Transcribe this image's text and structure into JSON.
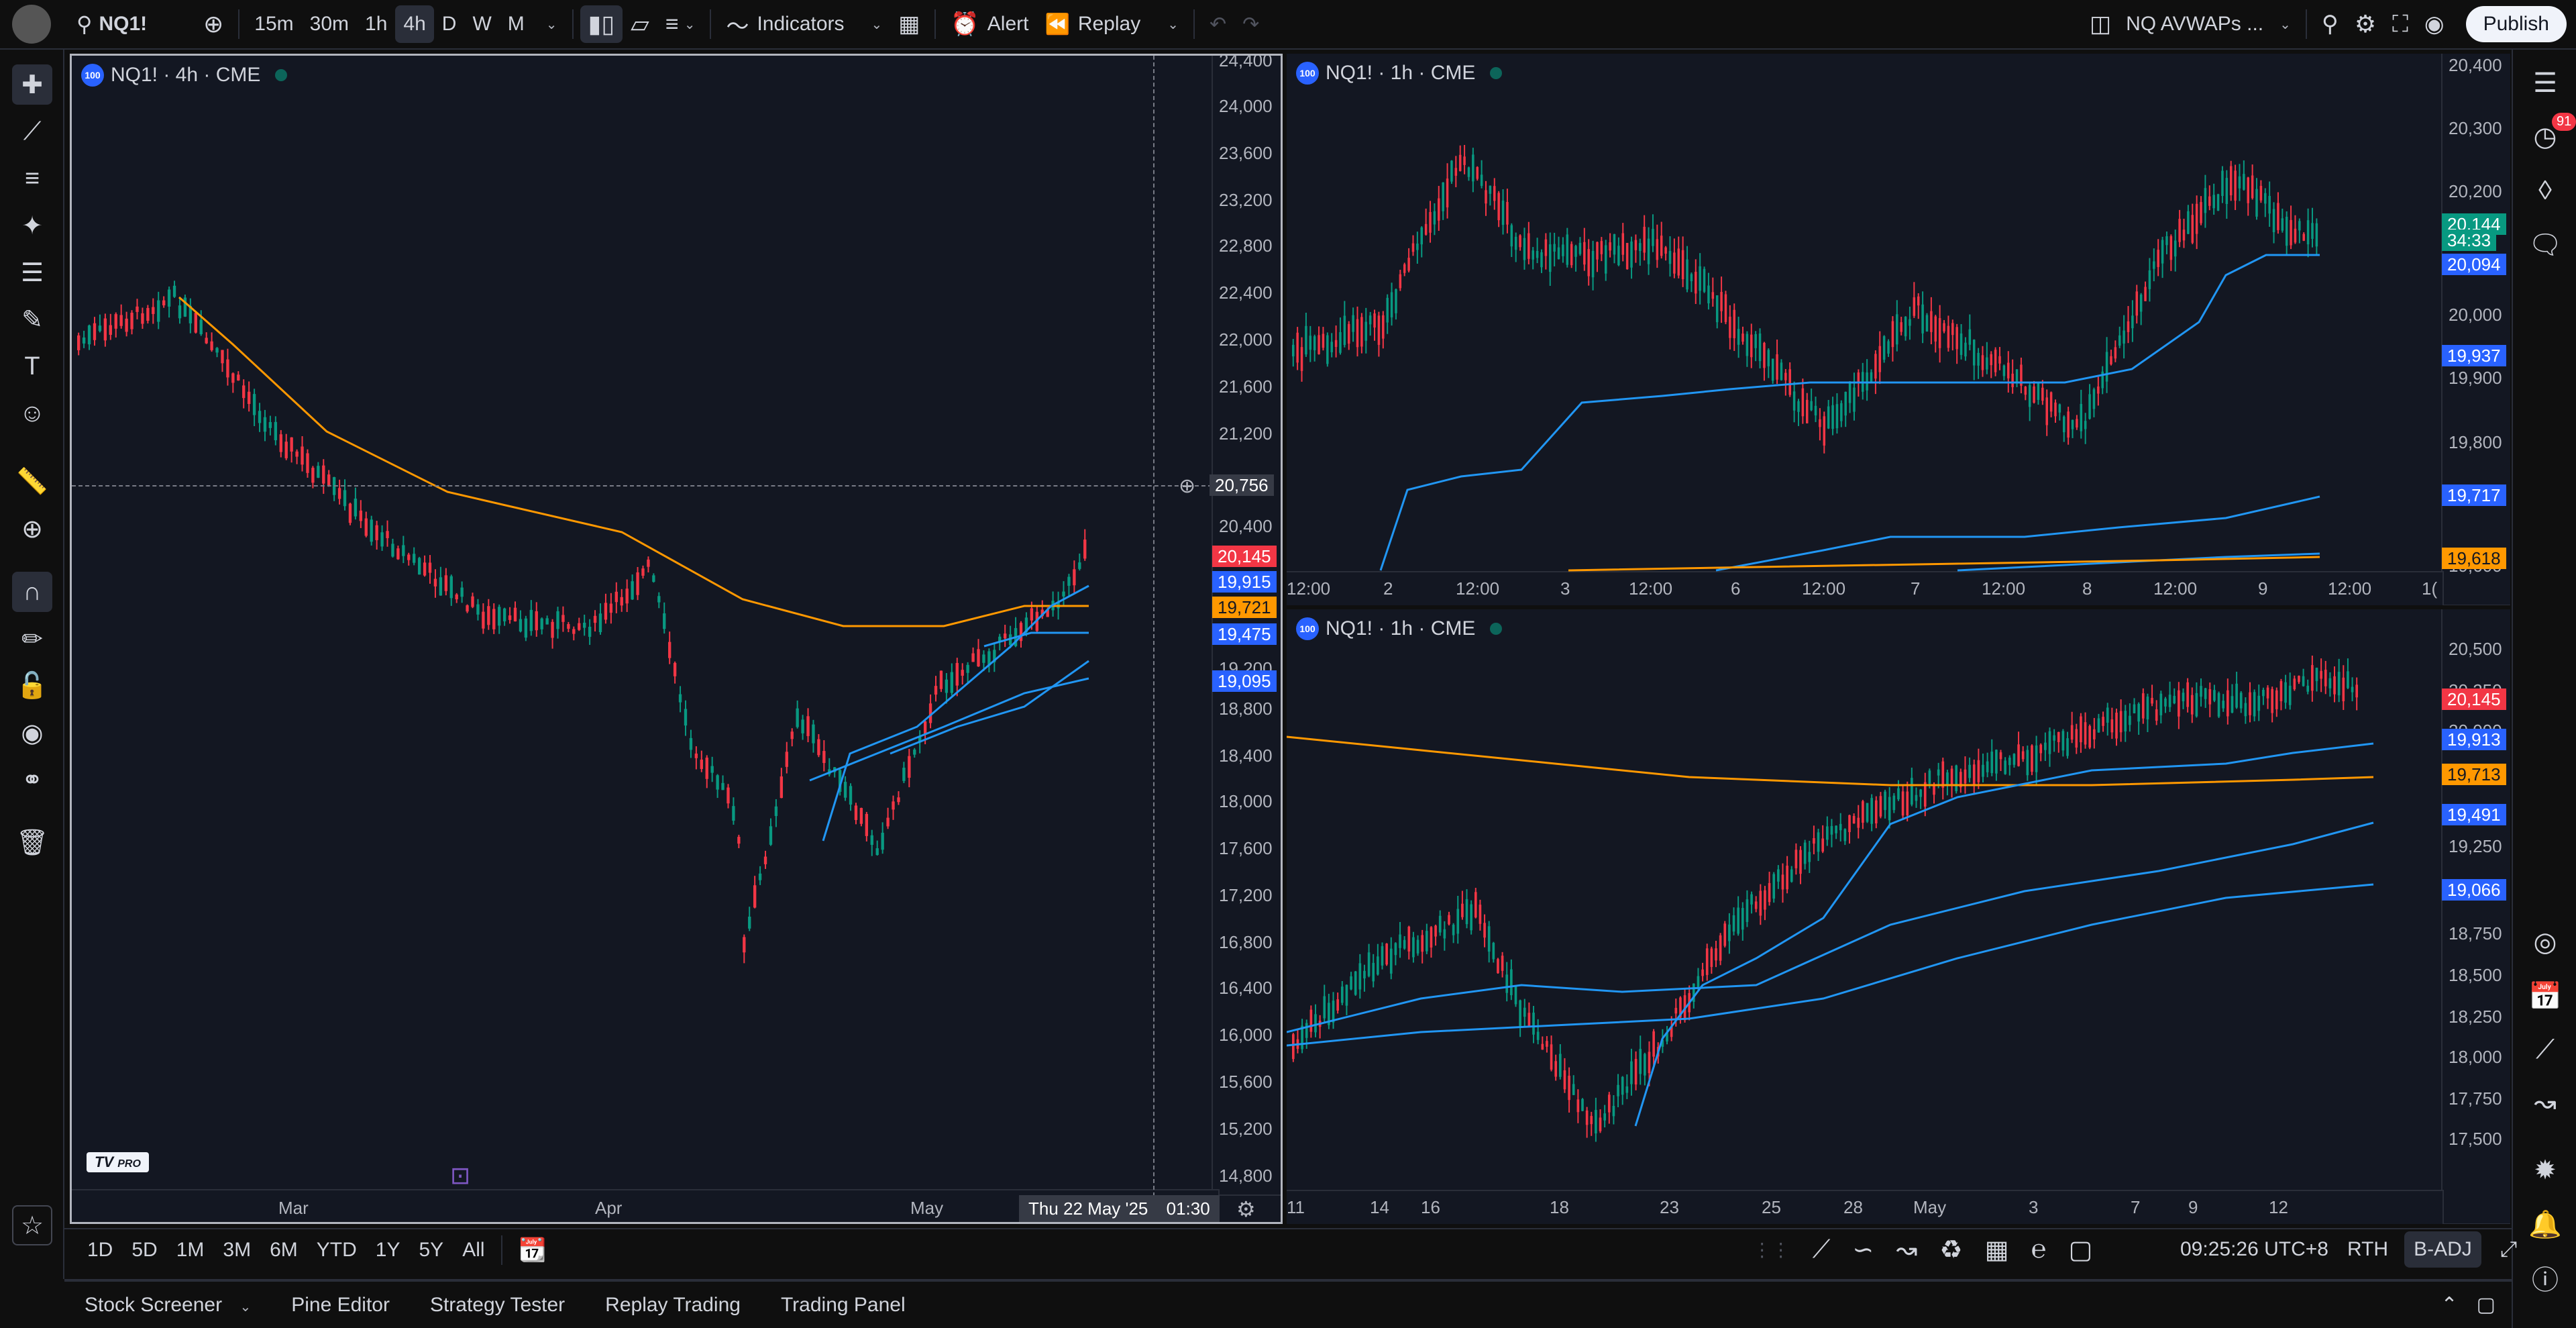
{
  "topbar": {
    "symbol": "NQ1!",
    "intervals": [
      "15m",
      "30m",
      "1h",
      "4h",
      "D",
      "W",
      "M"
    ],
    "active_interval": "4h",
    "indicators_label": "Indicators",
    "alert_label": "Alert",
    "replay_label": "Replay",
    "layout_name": "NQ AVWAPs ...",
    "publish_label": "Publish"
  },
  "right_toolbar": {
    "notifications_count": "91"
  },
  "charts": [
    {
      "legend": "NQ1! · 4h · CME",
      "price_axis": [
        "24,400",
        "24,000",
        "23,600",
        "23,200",
        "22,800",
        "22,400",
        "22,000",
        "21,600",
        "21,200",
        "20,400",
        "19,200",
        "18,800",
        "18,400",
        "18,000",
        "17,600",
        "17,200",
        "16,800",
        "16,400",
        "16,000",
        "15,600",
        "15,200",
        "14,800"
      ],
      "time_axis": [
        "Mar",
        "Apr",
        "May"
      ],
      "crosshair_price": "20,756",
      "crosshair_time": "Thu 22 May '25",
      "crosshair_clock": "01:30",
      "tags": [
        {
          "text": "20,145",
          "color": "red"
        },
        {
          "text": "19,915",
          "color": "blue"
        },
        {
          "text": "19,721",
          "color": "orange"
        },
        {
          "text": "19,475",
          "color": "blue"
        },
        {
          "text": "19,095",
          "color": "blue"
        }
      ],
      "logo": "PRO"
    },
    {
      "legend": "NQ1! · 1h · CME",
      "price_axis": [
        "20,400",
        "20,300",
        "20,200",
        "20,000",
        "19,900",
        "19,800",
        "19,600"
      ],
      "time_axis": [
        "12:00",
        "2",
        "12:00",
        "3",
        "12:00",
        "6",
        "12:00",
        "7",
        "12:00",
        "8",
        "12:00",
        "9",
        "12:00",
        "1("
      ],
      "tags": [
        {
          "text": "20,144",
          "color": "green"
        },
        {
          "text": "34:33",
          "color": "green"
        },
        {
          "text": "20,094",
          "color": "blue"
        },
        {
          "text": "19,937",
          "color": "blue"
        },
        {
          "text": "19,717",
          "color": "blue"
        },
        {
          "text": "19,618",
          "color": "orange"
        }
      ]
    },
    {
      "legend": "NQ1! · 1h · CME",
      "price_axis": [
        "20,500",
        "20,250",
        "20,000",
        "19,250",
        "18,750",
        "18,500",
        "18,250",
        "18,000",
        "17,750",
        "17,500"
      ],
      "time_axis": [
        "11",
        "14",
        "16",
        "18",
        "23",
        "25",
        "28",
        "May",
        "3",
        "7",
        "9",
        "12"
      ],
      "tags": [
        {
          "text": "20,145",
          "color": "red"
        },
        {
          "text": "19,913",
          "color": "blue"
        },
        {
          "text": "19,713",
          "color": "orange"
        },
        {
          "text": "19,491",
          "color": "blue"
        },
        {
          "text": "19,066",
          "color": "blue"
        }
      ]
    }
  ],
  "range_bar": {
    "ranges": [
      "1D",
      "5D",
      "1M",
      "3M",
      "6M",
      "YTD",
      "1Y",
      "5Y",
      "All"
    ],
    "clock": "09:25:26 UTC+8",
    "session": "RTH",
    "adjust": "B-ADJ"
  },
  "panel_bar": {
    "items": [
      "Stock Screener",
      "Pine Editor",
      "Strategy Tester",
      "Replay Trading",
      "Trading Panel"
    ]
  },
  "colors": {
    "up": "#089981",
    "down": "#f23645",
    "vwap": "#2196f3",
    "avg": "#ff9800"
  }
}
